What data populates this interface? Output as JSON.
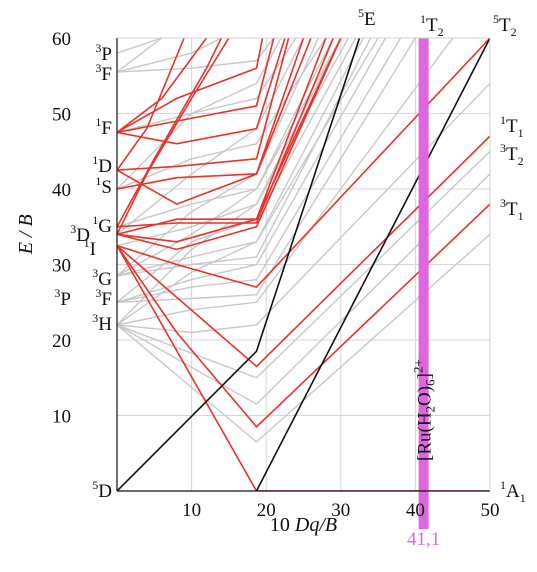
{
  "chart_data": {
    "type": "line",
    "xlabel": "10 Dq/B",
    "ylabel": "E / B",
    "xlim": [
      0,
      50
    ],
    "ylim": [
      0,
      60
    ],
    "xticks": [
      "10",
      "20",
      "30",
      "40",
      "50"
    ],
    "yticks": [
      "10",
      "20",
      "30",
      "40",
      "50",
      "60"
    ],
    "grid": true,
    "colors": {
      "spin_allowed": "#e8322c",
      "high_spin": "#111111",
      "other": "#c8c8c8",
      "marker": "#e066e0",
      "grid": "#d6d6d6"
    },
    "marker": {
      "x": 41.1,
      "label_main": "[Ru(H",
      "label_sub1": "2",
      "label_mid": "O)",
      "label_sub2": "6",
      "label_end": "]",
      "label_sup": "2+",
      "value": "41,1"
    },
    "left_terms": [
      {
        "sup": "5",
        "letter": "D",
        "y": 0
      },
      {
        "sup": "3",
        "letter": "H",
        "y": 22
      },
      {
        "sup": "3",
        "letter": "P",
        "y": 25
      },
      {
        "sup": "3",
        "letter": "F",
        "y": 25
      },
      {
        "sup": "3",
        "letter": "G",
        "y": 28.5
      },
      {
        "sup": "3",
        "letter": "D",
        "y": 34
      },
      {
        "sup": "1",
        "letter": "I",
        "y": 32.5
      },
      {
        "sup": "1",
        "letter": "G",
        "y": 35
      },
      {
        "sup": "1",
        "letter": "S",
        "y": 40
      },
      {
        "sup": "1",
        "letter": "D",
        "y": 42.5
      },
      {
        "sup": "1",
        "letter": "F",
        "y": 47.5
      },
      {
        "sup": "3",
        "letter": "F",
        "y": 55.5
      },
      {
        "sup": "3",
        "letter": "P",
        "y": 58
      }
    ],
    "right_terms": [
      {
        "sup": "1",
        "letter": "A",
        "sub": "1",
        "y": 0
      },
      {
        "sup": "3",
        "letter": "T",
        "sub": "1",
        "y": 37
      },
      {
        "sup": "3",
        "letter": "T",
        "sub": "2",
        "y": 44.5
      },
      {
        "sup": "1",
        "letter": "T",
        "sub": "1",
        "y": 49
      },
      {
        "sup": "5",
        "letter": "T",
        "sub": "2",
        "y": 62.5
      },
      {
        "sup": "1",
        "letter": "T",
        "sub": "2",
        "y": 62.5
      },
      {
        "sup": "5",
        "letter": "E",
        "sub": "",
        "y": 62.5
      }
    ],
    "series": [
      {
        "class": "high_spin",
        "points": [
          [
            0,
            0
          ],
          [
            18.7,
            18.5
          ],
          [
            32.5,
            60
          ]
        ]
      },
      {
        "class": "high_spin",
        "points": [
          [
            18.7,
            0
          ],
          [
            50,
            60
          ]
        ]
      },
      {
        "class": "spin_allowed",
        "points": [
          [
            0,
            32.5
          ],
          [
            18.7,
            0
          ],
          [
            50,
            0
          ]
        ]
      },
      {
        "class": "spin_allowed",
        "points": [
          [
            0,
            32.5
          ],
          [
            18.7,
            16.5
          ],
          [
            50,
            47
          ]
        ]
      },
      {
        "class": "spin_allowed",
        "points": [
          [
            0,
            32.5
          ],
          [
            8,
            21
          ],
          [
            18.7,
            8.5
          ],
          [
            50,
            38
          ]
        ]
      },
      {
        "class": "spin_allowed",
        "points": [
          [
            0,
            32.5
          ],
          [
            8,
            30
          ],
          [
            18.7,
            27
          ],
          [
            50,
            60
          ]
        ]
      },
      {
        "class": "spin_allowed",
        "points": [
          [
            0,
            34
          ],
          [
            8,
            32
          ],
          [
            18.7,
            35
          ],
          [
            30,
            60
          ]
        ]
      },
      {
        "class": "spin_allowed",
        "points": [
          [
            0,
            34
          ],
          [
            8,
            36
          ],
          [
            18.7,
            36
          ],
          [
            30,
            60
          ]
        ]
      },
      {
        "class": "spin_allowed",
        "points": [
          [
            0,
            34
          ],
          [
            8,
            33
          ],
          [
            18.7,
            36
          ],
          [
            28,
            60
          ]
        ]
      },
      {
        "class": "spin_allowed",
        "points": [
          [
            0,
            35
          ],
          [
            8,
            35.5
          ],
          [
            18.7,
            35.5
          ],
          [
            29,
            60
          ]
        ]
      },
      {
        "class": "spin_allowed",
        "points": [
          [
            0,
            40
          ],
          [
            8,
            41.5
          ],
          [
            18.7,
            42
          ],
          [
            25,
            60
          ]
        ]
      },
      {
        "class": "spin_allowed",
        "points": [
          [
            0,
            42.5
          ],
          [
            8,
            38
          ],
          [
            18.7,
            42
          ],
          [
            26,
            60
          ]
        ]
      },
      {
        "class": "spin_allowed",
        "points": [
          [
            0,
            42.5
          ],
          [
            8,
            43
          ],
          [
            18.7,
            44
          ],
          [
            23,
            60
          ]
        ]
      },
      {
        "class": "spin_allowed",
        "points": [
          [
            0,
            47.5
          ],
          [
            8,
            49
          ],
          [
            18.7,
            51
          ],
          [
            21,
            60
          ]
        ]
      },
      {
        "class": "spin_allowed",
        "points": [
          [
            0,
            47.5
          ],
          [
            8,
            52
          ],
          [
            18.7,
            56
          ],
          [
            19.5,
            60
          ]
        ]
      },
      {
        "class": "spin_allowed",
        "points": [
          [
            0,
            47.5
          ],
          [
            8,
            46
          ],
          [
            18.7,
            48
          ],
          [
            22.5,
            60
          ]
        ]
      },
      {
        "class": "spin_allowed",
        "points": [
          [
            0,
            47.5
          ],
          [
            6,
            52
          ],
          [
            12,
            60
          ]
        ]
      },
      {
        "class": "spin_allowed",
        "points": [
          [
            0,
            42.5
          ],
          [
            4,
            48
          ],
          [
            9,
            60
          ]
        ]
      },
      {
        "class": "spin_allowed",
        "points": [
          [
            0,
            35
          ],
          [
            5,
            44
          ],
          [
            12,
            56
          ],
          [
            14,
            60
          ]
        ]
      },
      {
        "class": "spin_allowed",
        "points": [
          [
            0,
            34
          ],
          [
            4,
            42
          ],
          [
            10,
            52
          ],
          [
            15,
            60
          ]
        ]
      },
      {
        "class": "other",
        "points": [
          [
            0,
            22
          ],
          [
            18.7,
            6.5
          ],
          [
            50,
            34
          ]
        ]
      },
      {
        "class": "other",
        "points": [
          [
            0,
            22
          ],
          [
            18.7,
            11.5
          ],
          [
            50,
            42
          ]
        ]
      },
      {
        "class": "other",
        "points": [
          [
            0,
            22
          ],
          [
            18.7,
            15
          ],
          [
            50,
            45
          ]
        ]
      },
      {
        "class": "other",
        "points": [
          [
            0,
            22
          ],
          [
            10,
            21
          ],
          [
            18.7,
            22
          ],
          [
            50,
            54
          ]
        ]
      },
      {
        "class": "other",
        "points": [
          [
            0,
            22
          ],
          [
            10,
            24
          ],
          [
            18.7,
            25
          ],
          [
            45,
            60
          ]
        ]
      },
      {
        "class": "other",
        "points": [
          [
            0,
            25
          ],
          [
            10,
            25.5
          ],
          [
            18.7,
            26
          ],
          [
            40,
            60
          ]
        ]
      },
      {
        "class": "other",
        "points": [
          [
            0,
            25
          ],
          [
            10,
            27
          ],
          [
            18.7,
            28
          ],
          [
            38,
            60
          ]
        ]
      },
      {
        "class": "other",
        "points": [
          [
            0,
            25
          ],
          [
            10,
            28
          ],
          [
            18.7,
            30
          ],
          [
            36,
            60
          ]
        ]
      },
      {
        "class": "other",
        "points": [
          [
            0,
            28.5
          ],
          [
            10,
            30
          ],
          [
            18.7,
            31
          ],
          [
            34,
            60
          ]
        ]
      },
      {
        "class": "other",
        "points": [
          [
            0,
            28.5
          ],
          [
            10,
            31
          ],
          [
            18.7,
            33
          ],
          [
            33,
            60
          ]
        ]
      },
      {
        "class": "other",
        "points": [
          [
            0,
            32.5
          ],
          [
            10,
            35
          ],
          [
            18.7,
            38
          ],
          [
            31,
            60
          ]
        ]
      },
      {
        "class": "other",
        "points": [
          [
            0,
            35
          ],
          [
            10,
            38
          ],
          [
            18.7,
            40
          ],
          [
            30,
            60
          ]
        ]
      },
      {
        "class": "other",
        "points": [
          [
            0,
            40
          ],
          [
            10,
            44
          ],
          [
            18.7,
            46
          ],
          [
            28,
            60
          ]
        ]
      },
      {
        "class": "other",
        "points": [
          [
            0,
            47.5
          ],
          [
            10,
            50
          ],
          [
            18.7,
            52
          ],
          [
            24,
            60
          ]
        ]
      },
      {
        "class": "other",
        "points": [
          [
            0,
            55.5
          ],
          [
            10,
            56
          ],
          [
            18.7,
            57
          ],
          [
            21,
            60
          ]
        ]
      },
      {
        "class": "other",
        "points": [
          [
            0,
            55.5
          ],
          [
            10,
            58
          ],
          [
            14,
            60
          ]
        ]
      },
      {
        "class": "other",
        "points": [
          [
            0,
            58
          ],
          [
            6,
            60
          ]
        ]
      },
      {
        "class": "other",
        "points": [
          [
            0,
            55.5
          ],
          [
            6,
            60
          ]
        ]
      },
      {
        "class": "other",
        "points": [
          [
            0,
            25
          ],
          [
            10,
            33
          ],
          [
            18.7,
            36
          ],
          [
            32,
            60
          ]
        ]
      },
      {
        "class": "other",
        "points": [
          [
            0,
            22
          ],
          [
            10,
            29
          ],
          [
            18.7,
            33
          ],
          [
            35,
            60
          ]
        ]
      },
      {
        "class": "other",
        "points": [
          [
            0,
            22
          ],
          [
            10,
            32
          ],
          [
            18.7,
            38
          ],
          [
            30,
            60
          ]
        ]
      },
      {
        "class": "other",
        "points": [
          [
            0,
            28.5
          ],
          [
            10,
            37
          ],
          [
            18.7,
            42
          ],
          [
            27,
            60
          ]
        ]
      },
      {
        "class": "other",
        "points": [
          [
            0,
            34
          ],
          [
            10,
            42
          ],
          [
            18.7,
            48
          ],
          [
            25,
            60
          ]
        ]
      },
      {
        "class": "other",
        "points": [
          [
            0,
            40
          ],
          [
            10,
            50
          ],
          [
            18.7,
            54
          ],
          [
            22,
            60
          ]
        ]
      },
      {
        "class": "other",
        "points": [
          [
            0,
            28.5
          ],
          [
            10,
            34
          ],
          [
            18.7,
            40
          ],
          [
            29,
            60
          ]
        ]
      }
    ]
  }
}
